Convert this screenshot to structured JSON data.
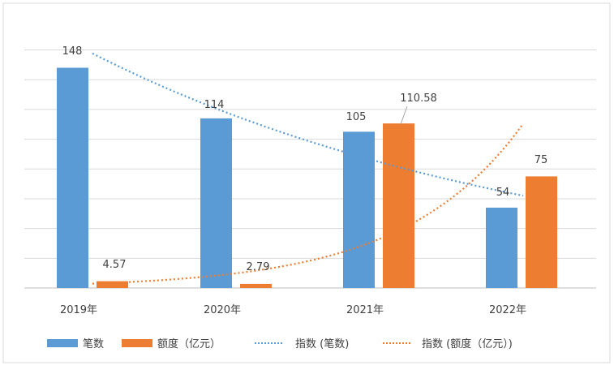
{
  "chart_data": {
    "type": "bar",
    "categories": [
      "2019年",
      "2020年",
      "2021年",
      "2022年"
    ],
    "series": [
      {
        "name": "笔数",
        "values": [
          148,
          114,
          105,
          54
        ],
        "labels": [
          "148",
          "114",
          "105",
          "54"
        ],
        "color": "#5b9bd5"
      },
      {
        "name": "额度（亿元）",
        "values": [
          4.57,
          2.79,
          110.58,
          75
        ],
        "labels": [
          "4.57",
          "2.79",
          "110.58",
          "75"
        ],
        "color": "#ed7d31"
      }
    ],
    "trendlines": [
      {
        "name": "指数 (笔数)",
        "type": "exponential",
        "of_series": 0,
        "color": "#5b9bd5",
        "style": "dotted"
      },
      {
        "name": "指数 (额度（亿元）)",
        "type": "exponential",
        "of_series": 1,
        "color": "#ed7d31",
        "style": "dotted"
      }
    ],
    "ylim": [
      0,
      160
    ],
    "ytick_step": 20,
    "y_axis_labels_shown": false,
    "grid": true,
    "legend": "bottom",
    "title": "",
    "xlabel": "",
    "ylabel": ""
  }
}
